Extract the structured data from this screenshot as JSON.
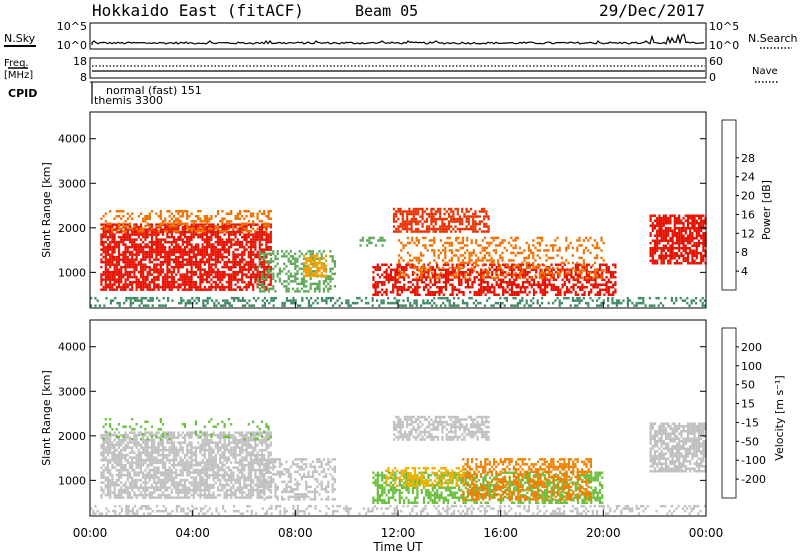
{
  "header": {
    "station": "Hokkaido East (fitACF)",
    "beam": "Beam 05",
    "date": "29/Dec/2017"
  },
  "top_panel": {
    "nsky_label": "N.Sky",
    "nsearch_label": "N.Search",
    "left_ticks": [
      "10^5",
      "10^0"
    ],
    "right_ticks": [
      "10^5",
      "10^0"
    ]
  },
  "freq_panel": {
    "freq_label": "Freq.",
    "freq_unit": "[MHz]",
    "left_ticks": [
      "18",
      "8"
    ],
    "nave_label": "Nave",
    "right_ticks": [
      "60",
      "0"
    ]
  },
  "cpid_panel": {
    "label": "CPID",
    "mode": "normal (fast) 151",
    "program": "themis 3300"
  },
  "x_axis": {
    "label": "Time UT",
    "ticks": [
      "00:00",
      "04:00",
      "08:00",
      "12:00",
      "16:00",
      "20:00",
      "00:00"
    ]
  },
  "chart_data": [
    {
      "type": "heatmap",
      "name": "power",
      "ylabel": "Slant Range [km]",
      "yticks": [
        "1000",
        "2000",
        "3000",
        "4000"
      ],
      "ylim": [
        200,
        4600
      ],
      "xlim_hours": [
        0,
        24
      ],
      "colorbar_label": "Power [dB]",
      "colorbar_ticks": [
        "4",
        "8",
        "12",
        "16",
        "20",
        "24",
        "28"
      ],
      "colorbar_colors": [
        "#0a1cd6",
        "#2a52a8",
        "#3f8a63",
        "#5fa85a",
        "#c8c820",
        "#f0b000",
        "#f07000",
        "#f03000",
        "#e80000"
      ],
      "regions": [
        {
          "t0": 0.4,
          "t1": 7.0,
          "r0": 600,
          "r1": 2100,
          "color": "#e81000",
          "density": 0.75
        },
        {
          "t0": 0.4,
          "t1": 7.0,
          "r0": 1900,
          "r1": 2400,
          "color": "#f07000",
          "density": 0.35
        },
        {
          "t0": 6.5,
          "t1": 9.5,
          "r0": 600,
          "r1": 1500,
          "color": "#5fa85a",
          "density": 0.4
        },
        {
          "t0": 8.3,
          "t1": 9.2,
          "r0": 900,
          "r1": 1400,
          "color": "#f0a000",
          "density": 0.6
        },
        {
          "t0": 10.5,
          "t1": 11.5,
          "r0": 1600,
          "r1": 1800,
          "color": "#5fa85a",
          "density": 0.5
        },
        {
          "t0": 11.8,
          "t1": 15.5,
          "r0": 1900,
          "r1": 2450,
          "color": "#e83000",
          "density": 0.6
        },
        {
          "t0": 11.0,
          "t1": 20.5,
          "r0": 500,
          "r1": 1200,
          "color": "#e81000",
          "density": 0.55
        },
        {
          "t0": 12.0,
          "t1": 20.0,
          "r0": 900,
          "r1": 1800,
          "color": "#f07000",
          "density": 0.3
        },
        {
          "t0": 21.8,
          "t1": 24.0,
          "r0": 1200,
          "r1": 2300,
          "color": "#e81000",
          "density": 0.75
        },
        {
          "t0": 0.0,
          "t1": 24.0,
          "r0": 250,
          "r1": 450,
          "color": "#3f8a63",
          "density": 0.35
        }
      ]
    },
    {
      "type": "heatmap",
      "name": "velocity",
      "ylabel": "Slant Range [km]",
      "yticks": [
        "1000",
        "2000",
        "3000",
        "4000"
      ],
      "ylim": [
        200,
        4600
      ],
      "xlim_hours": [
        0,
        24
      ],
      "colorbar_label": "Velocity [m s⁻¹]",
      "colorbar_ticks": [
        "200",
        "100",
        "50",
        "15",
        "-15",
        "-50",
        "-100",
        "-200"
      ],
      "colorbar_colors": [
        "#0a1cd6",
        "#2a52a8",
        "#3f8a63",
        "#6cc040",
        "#c0c0c0",
        "#f0b000",
        "#f07000",
        "#f03000",
        "#e80000"
      ],
      "regions": [
        {
          "t0": 0.4,
          "t1": 7.0,
          "r0": 600,
          "r1": 2100,
          "color": "#c0c0c0",
          "density": 0.7
        },
        {
          "t0": 0.4,
          "t1": 7.0,
          "r0": 1900,
          "r1": 2400,
          "color": "#6cc040",
          "density": 0.12
        },
        {
          "t0": 6.5,
          "t1": 9.5,
          "r0": 600,
          "r1": 1500,
          "color": "#c0c0c0",
          "density": 0.45
        },
        {
          "t0": 11.8,
          "t1": 15.5,
          "r0": 1900,
          "r1": 2450,
          "color": "#c0c0c0",
          "density": 0.65
        },
        {
          "t0": 11.0,
          "t1": 20.0,
          "r0": 500,
          "r1": 1200,
          "color": "#6cc040",
          "density": 0.55
        },
        {
          "t0": 14.5,
          "t1": 19.5,
          "r0": 600,
          "r1": 1500,
          "color": "#f08000",
          "density": 0.5
        },
        {
          "t0": 11.5,
          "t1": 14.5,
          "r0": 900,
          "r1": 1300,
          "color": "#f0b000",
          "density": 0.45
        },
        {
          "t0": 21.8,
          "t1": 24.0,
          "r0": 1200,
          "r1": 2300,
          "color": "#c0c0c0",
          "density": 0.75
        },
        {
          "t0": 0.0,
          "t1": 24.0,
          "r0": 250,
          "r1": 450,
          "color": "#c0c0c0",
          "density": 0.3
        }
      ]
    }
  ]
}
